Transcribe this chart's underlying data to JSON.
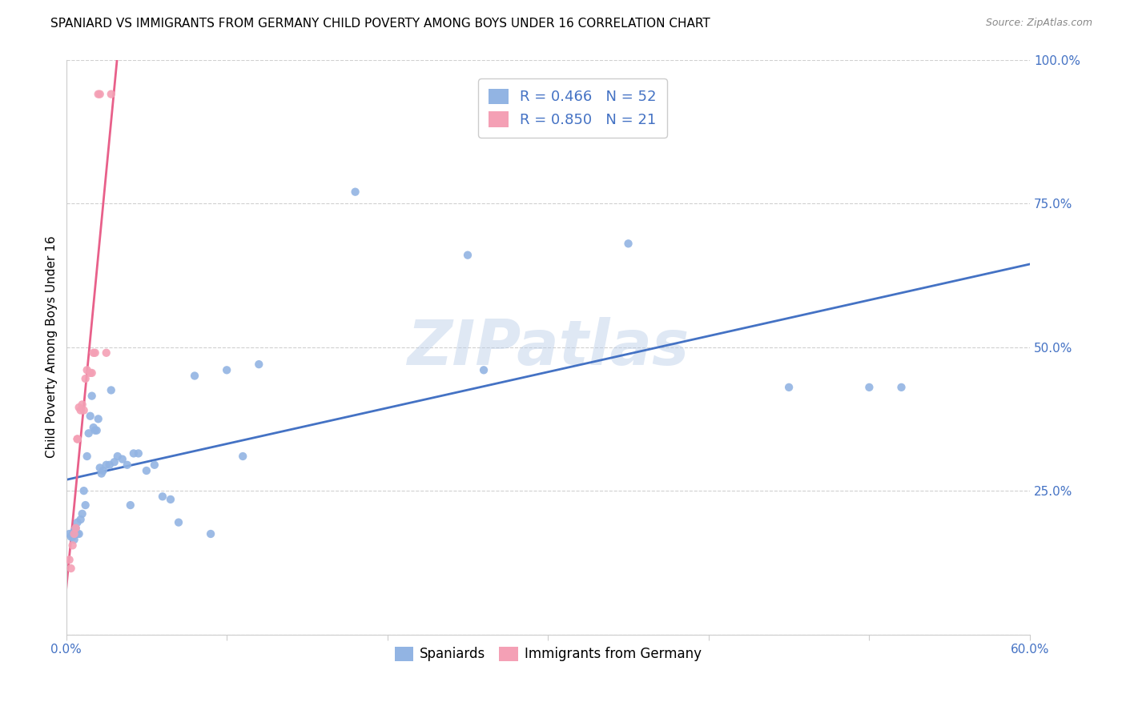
{
  "title": "SPANIARD VS IMMIGRANTS FROM GERMANY CHILD POVERTY AMONG BOYS UNDER 16 CORRELATION CHART",
  "source": "Source: ZipAtlas.com",
  "ylabel": "Child Poverty Among Boys Under 16",
  "xlim": [
    0.0,
    0.6
  ],
  "ylim": [
    0.0,
    1.0
  ],
  "xtick_positions": [
    0.0,
    0.1,
    0.2,
    0.3,
    0.4,
    0.5,
    0.6
  ],
  "xtick_labels": [
    "0.0%",
    "",
    "",
    "",
    "",
    "",
    "60.0%"
  ],
  "ytick_positions": [
    0.0,
    0.25,
    0.5,
    0.75,
    1.0
  ],
  "ytick_labels_right": [
    "",
    "25.0%",
    "50.0%",
    "75.0%",
    "100.0%"
  ],
  "spaniards_color": "#92b4e3",
  "immigrants_color": "#f4a0b5",
  "line_blue": "#4472c4",
  "line_pink": "#e8608a",
  "spaniards_R": 0.466,
  "spaniards_N": 52,
  "immigrants_R": 0.85,
  "immigrants_N": 21,
  "watermark": "ZIPatlas",
  "title_fontsize": 11,
  "axis_label_fontsize": 11,
  "tick_fontsize": 11,
  "legend_fontsize": 13,
  "scatter_size": 55,
  "spaniards_x": [
    0.002,
    0.003,
    0.004,
    0.004,
    0.005,
    0.005,
    0.006,
    0.007,
    0.007,
    0.008,
    0.009,
    0.01,
    0.011,
    0.012,
    0.013,
    0.014,
    0.015,
    0.016,
    0.017,
    0.018,
    0.019,
    0.02,
    0.021,
    0.022,
    0.023,
    0.025,
    0.027,
    0.028,
    0.03,
    0.032,
    0.035,
    0.038,
    0.04,
    0.042,
    0.045,
    0.05,
    0.055,
    0.06,
    0.065,
    0.07,
    0.08,
    0.09,
    0.1,
    0.11,
    0.12,
    0.18,
    0.25,
    0.26,
    0.35,
    0.45,
    0.5,
    0.52
  ],
  "spaniards_y": [
    0.175,
    0.17,
    0.175,
    0.17,
    0.18,
    0.165,
    0.185,
    0.175,
    0.195,
    0.175,
    0.2,
    0.21,
    0.25,
    0.225,
    0.31,
    0.35,
    0.38,
    0.415,
    0.36,
    0.355,
    0.355,
    0.375,
    0.29,
    0.28,
    0.285,
    0.295,
    0.295,
    0.425,
    0.3,
    0.31,
    0.305,
    0.295,
    0.225,
    0.315,
    0.315,
    0.285,
    0.295,
    0.24,
    0.235,
    0.195,
    0.45,
    0.175,
    0.46,
    0.31,
    0.47,
    0.77,
    0.66,
    0.46,
    0.68,
    0.43,
    0.43,
    0.43
  ],
  "immigrants_x": [
    0.002,
    0.003,
    0.004,
    0.005,
    0.006,
    0.007,
    0.007,
    0.008,
    0.009,
    0.01,
    0.011,
    0.012,
    0.013,
    0.015,
    0.016,
    0.017,
    0.018,
    0.02,
    0.021,
    0.025,
    0.028
  ],
  "immigrants_y": [
    0.13,
    0.115,
    0.155,
    0.175,
    0.185,
    0.34,
    0.34,
    0.395,
    0.39,
    0.4,
    0.39,
    0.445,
    0.46,
    0.455,
    0.455,
    0.49,
    0.49,
    0.94,
    0.94,
    0.49,
    0.94
  ]
}
